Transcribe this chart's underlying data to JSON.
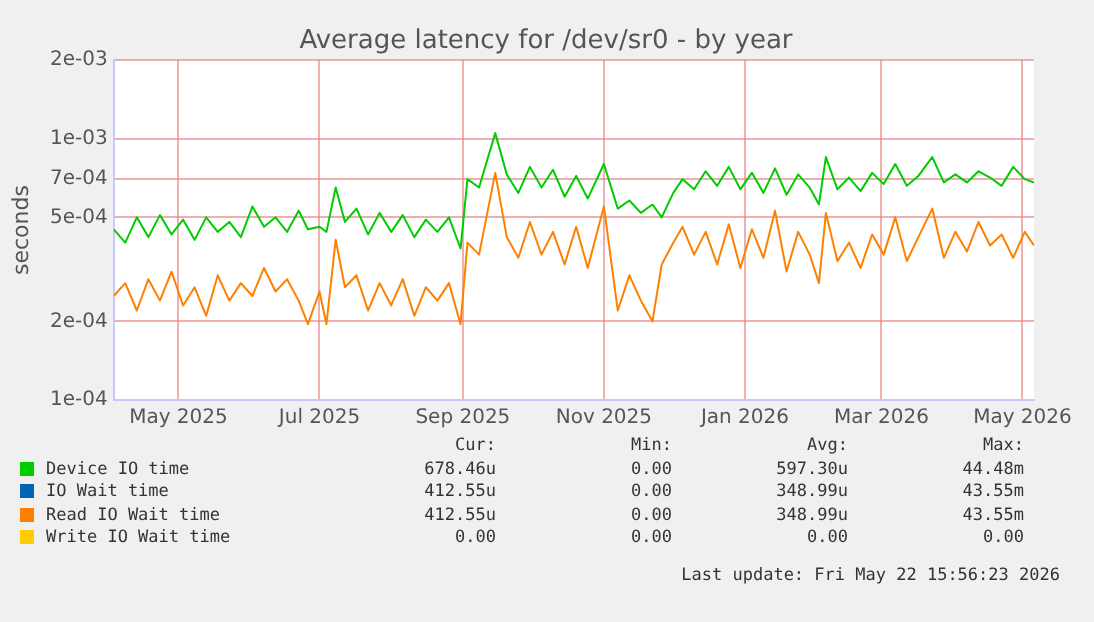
{
  "chart_data": {
    "type": "line",
    "title": "Average latency for /dev/sr0 - by year",
    "ylabel": "seconds",
    "x": [
      "2025-04-03",
      "2025-04-08",
      "2025-04-13",
      "2025-04-18",
      "2025-04-23",
      "2025-04-28",
      "2025-05-03",
      "2025-05-08",
      "2025-05-13",
      "2025-05-18",
      "2025-05-23",
      "2025-05-28",
      "2025-06-02",
      "2025-06-07",
      "2025-06-12",
      "2025-06-17",
      "2025-06-22",
      "2025-06-26",
      "2025-07-01",
      "2025-07-04",
      "2025-07-08",
      "2025-07-12",
      "2025-07-17",
      "2025-07-22",
      "2025-07-27",
      "2025-08-01",
      "2025-08-06",
      "2025-08-11",
      "2025-08-16",
      "2025-08-21",
      "2025-08-26",
      "2025-08-31",
      "2025-09-03",
      "2025-09-08",
      "2025-09-15",
      "2025-09-20",
      "2025-09-25",
      "2025-09-30",
      "2025-10-05",
      "2025-10-10",
      "2025-10-15",
      "2025-10-20",
      "2025-10-25",
      "2025-11-01",
      "2025-11-07",
      "2025-11-12",
      "2025-11-17",
      "2025-11-22",
      "2025-11-26",
      "2025-12-01",
      "2025-12-05",
      "2025-12-10",
      "2025-12-15",
      "2025-12-20",
      "2025-12-25",
      "2025-12-30",
      "2026-01-04",
      "2026-01-09",
      "2026-01-14",
      "2026-01-19",
      "2026-01-24",
      "2026-01-29",
      "2026-02-02",
      "2026-02-05",
      "2026-02-10",
      "2026-02-15",
      "2026-02-20",
      "2026-02-25",
      "2026-03-02",
      "2026-03-07",
      "2026-03-12",
      "2026-03-17",
      "2026-03-23",
      "2026-03-28",
      "2026-04-02",
      "2026-04-07",
      "2026-04-12",
      "2026-04-17",
      "2026-04-22",
      "2026-04-27",
      "2026-05-02",
      "2026-05-06"
    ],
    "series": [
      {
        "name": "Device IO time",
        "color": "#00cc00",
        "values": [
          0.00045,
          0.0004,
          0.0005,
          0.00042,
          0.00051,
          0.00043,
          0.00049,
          0.00041,
          0.0005,
          0.00044,
          0.00048,
          0.00042,
          0.00055,
          0.00046,
          0.0005,
          0.00044,
          0.00053,
          0.00045,
          0.00046,
          0.00044,
          0.00065,
          0.00048,
          0.00054,
          0.00043,
          0.00052,
          0.00044,
          0.00051,
          0.00042,
          0.00049,
          0.00044,
          0.0005,
          0.00038,
          0.0007,
          0.00065,
          0.00105,
          0.00073,
          0.00062,
          0.00078,
          0.00065,
          0.00076,
          0.0006,
          0.00072,
          0.00059,
          0.0008,
          0.00054,
          0.00058,
          0.00052,
          0.00056,
          0.0005,
          0.00062,
          0.0007,
          0.00064,
          0.00075,
          0.00066,
          0.00078,
          0.00064,
          0.00074,
          0.00062,
          0.00077,
          0.00061,
          0.00073,
          0.00065,
          0.00056,
          0.00085,
          0.00064,
          0.00071,
          0.00063,
          0.00074,
          0.00067,
          0.0008,
          0.00066,
          0.00072,
          0.00085,
          0.00068,
          0.00073,
          0.00068,
          0.00075,
          0.00071,
          0.00066,
          0.00078,
          0.0007,
          0.00068
        ]
      },
      {
        "name": "IO Wait time",
        "color": "#0066b3",
        "values": [
          null,
          null,
          null,
          null,
          null,
          null,
          null,
          null,
          null,
          null,
          null,
          null,
          null,
          null,
          null,
          null,
          null,
          null,
          null,
          null,
          null,
          null,
          null,
          null,
          null,
          null,
          null,
          null,
          null,
          null,
          null,
          null,
          null,
          null,
          null,
          null,
          null,
          null,
          null,
          null,
          null,
          null,
          null,
          null,
          null,
          null,
          null,
          null,
          null,
          null,
          null,
          null,
          null,
          null,
          null,
          null,
          null,
          null,
          null,
          null,
          null,
          null,
          null,
          null,
          null,
          null,
          null,
          null,
          null,
          null,
          null,
          null,
          null,
          null,
          null,
          null,
          null,
          null,
          null,
          null,
          null,
          null
        ]
      },
      {
        "name": "Read IO Wait time",
        "color": "#ff8000",
        "values": [
          0.00025,
          0.00028,
          0.00022,
          0.00029,
          0.00024,
          0.00031,
          0.00023,
          0.00027,
          0.00021,
          0.0003,
          0.00024,
          0.00028,
          0.00025,
          0.00032,
          0.00026,
          0.00029,
          0.00024,
          0.000195,
          0.00026,
          0.000195,
          0.00041,
          0.00027,
          0.0003,
          0.00022,
          0.00028,
          0.00023,
          0.00029,
          0.00021,
          0.00027,
          0.00024,
          0.00028,
          0.000195,
          0.0004,
          0.00036,
          0.00074,
          0.00042,
          0.00035,
          0.00048,
          0.00036,
          0.00044,
          0.00033,
          0.00046,
          0.00032,
          0.00055,
          0.00022,
          0.0003,
          0.00024,
          0.0002,
          0.00033,
          0.0004,
          0.00046,
          0.00036,
          0.00044,
          0.00033,
          0.00047,
          0.00032,
          0.00045,
          0.00035,
          0.00053,
          0.00031,
          0.00044,
          0.00036,
          0.00028,
          0.00052,
          0.00034,
          0.0004,
          0.00032,
          0.00043,
          0.00036,
          0.0005,
          0.00034,
          0.00042,
          0.00054,
          0.00035,
          0.00044,
          0.00037,
          0.00048,
          0.00039,
          0.00043,
          0.00035,
          0.00044,
          0.00039
        ]
      },
      {
        "name": "Write IO Wait time",
        "color": "#ffcc00",
        "values": [
          null,
          null,
          null,
          null,
          null,
          null,
          null,
          null,
          null,
          null,
          null,
          null,
          null,
          null,
          null,
          null,
          null,
          null,
          null,
          null,
          null,
          null,
          null,
          null,
          null,
          null,
          null,
          null,
          null,
          null,
          null,
          null,
          null,
          null,
          null,
          null,
          null,
          null,
          null,
          null,
          null,
          null,
          null,
          null,
          null,
          null,
          null,
          null,
          null,
          null,
          null,
          null,
          null,
          null,
          null,
          null,
          null,
          null,
          null,
          null,
          null,
          null,
          null,
          null,
          null,
          null,
          null,
          null,
          null,
          null,
          null,
          null,
          null,
          null,
          null,
          null,
          null,
          null,
          null,
          null,
          null,
          null
        ]
      }
    ],
    "xlim": [
      "2025-04-03",
      "2026-05-06"
    ],
    "xticks": [
      {
        "value": "2025-05-01",
        "label": "May 2025"
      },
      {
        "value": "2025-07-01",
        "label": "Jul 2025"
      },
      {
        "value": "2025-09-01",
        "label": "Sep 2025"
      },
      {
        "value": "2025-11-01",
        "label": "Nov 2025"
      },
      {
        "value": "2026-01-01",
        "label": "Jan 2026"
      },
      {
        "value": "2026-03-01",
        "label": "Mar 2026"
      },
      {
        "value": "2026-05-01",
        "label": "May 2026"
      }
    ],
    "ylim": [
      0.0001,
      0.002
    ],
    "yticks": [
      {
        "value": 0.0001,
        "label": "1e-04"
      },
      {
        "value": 0.0002,
        "label": "2e-04"
      },
      {
        "value": 0.0005,
        "label": "5e-04"
      },
      {
        "value": 0.0007,
        "label": "7e-04"
      },
      {
        "value": 0.001,
        "label": "1e-03"
      },
      {
        "value": 0.002,
        "label": "2e-03"
      }
    ],
    "log": "y",
    "grid": true,
    "legend": "bottom",
    "marker": "none",
    "line_style": "solid",
    "annotations": [
      "Cur:",
      "Min:",
      "Avg:",
      "Max:",
      "678.46u",
      "0.00",
      "597.30u",
      "44.48m",
      "412.55u",
      "0.00",
      "348.99u",
      "43.55m",
      "412.55u",
      "0.00",
      "348.99u",
      "43.55m",
      "0.00",
      "0.00",
      "0.00",
      "0.00",
      "Last update: Fri May 22 15:56:23 2026"
    ]
  }
}
